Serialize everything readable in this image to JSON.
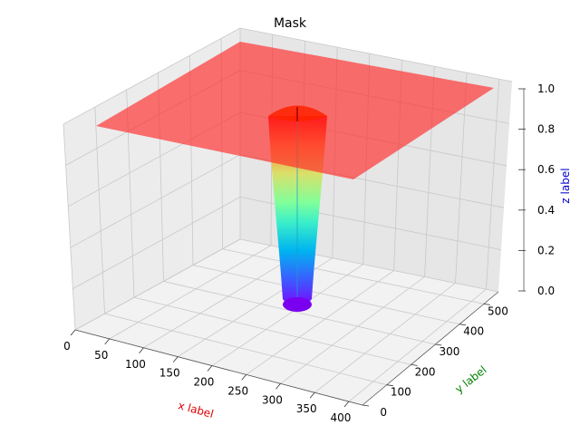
{
  "chart_data": {
    "type": "surface3d",
    "title": "Mask",
    "xlabel": "x label",
    "ylabel": "y label",
    "zlabel": "z label",
    "xlim": [
      0,
      420
    ],
    "ylim": [
      0,
      560
    ],
    "zlim": [
      0,
      1
    ],
    "x_ticks": [
      "0",
      "50",
      "100",
      "150",
      "200",
      "250",
      "300",
      "350",
      "400"
    ],
    "y_ticks": [
      "0",
      "100",
      "200",
      "300",
      "400",
      "500"
    ],
    "z_ticks": [
      "0.0",
      "0.2",
      "0.4",
      "0.6",
      "0.8",
      "1.0"
    ],
    "grid": true,
    "colormap": "rainbow",
    "surface": {
      "plane_z": 1.0,
      "plane_opacity": 0.65,
      "well_center": [
        210,
        280
      ],
      "well_radius": 35,
      "well_min_z": 0.0
    }
  },
  "colors": {
    "xlabel": "#e00000",
    "ylabel": "#008000",
    "zlabel": "#0000cc",
    "plane": "#ff2a2a",
    "pane_floor": "#f2f2f2",
    "pane_wall_left": "#ececec",
    "pane_wall_right": "#e6e6e6",
    "grid": "#c8c8c8"
  }
}
